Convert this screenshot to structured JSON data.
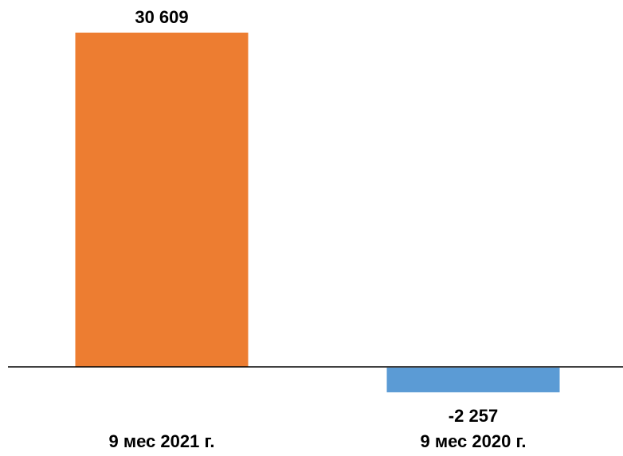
{
  "chart_data": {
    "type": "bar",
    "categories": [
      "9 мес 2021 г.",
      "9 мес 2020 г."
    ],
    "values": [
      30609,
      -2257
    ],
    "data_labels": [
      "30 609",
      "-2 257"
    ],
    "colors": [
      "#ED7D31",
      "#5B9BD5"
    ],
    "title": "",
    "xlabel": "",
    "ylabel": "",
    "grid": false,
    "legend": "none"
  }
}
